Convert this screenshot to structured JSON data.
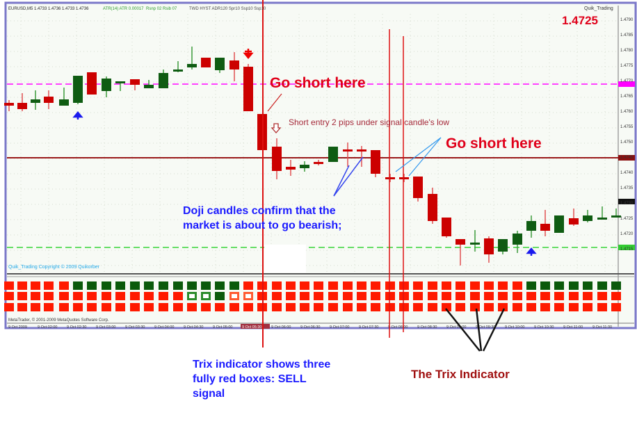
{
  "header": {
    "symbol_info": "EURUSD,M5 1.4733 1.4736 1.4733 1.4736",
    "indicator_info": "ATR(14) ATR 0.00017",
    "indicator_info2": "Rsnp 02 Rsib 07",
    "extra_info": "TWD HYST ADR120 Spr10 Ssp10 Ssp10"
  },
  "top_right": {
    "label": "Quik_Trading",
    "price": "1.4725"
  },
  "price_axis": [
    "1.4790",
    "1.4785",
    "1.4780",
    "1.4775",
    "1.4770",
    "1.4765",
    "1.4760",
    "1.4755",
    "1.4750",
    "1.4745",
    "1.4740",
    "1.4735",
    "1.4730",
    "1.4725",
    "1.4720",
    "1.4715"
  ],
  "price_markers": {
    "magenta": "1.4765",
    "darkred": "1.4745",
    "black": "1.4734",
    "green": "1.4722"
  },
  "copyright_main": "Quik_Trading   Copyright © 2009  Quikorber",
  "copyright_indicator": "MetaTrader, © 2001-2009 MetaQuotes Software Corp.",
  "time_axis": [
    "9 Oct 2009",
    "9 Oct 02:00",
    "9 Oct 02:30",
    "9 Oct 03:00",
    "9 Oct 03:30",
    "9 Oct 04:00",
    "9 Oct 04:30",
    "9 Oct 05:00",
    "9 Oct 05:30",
    "9 Oct 06:00",
    "9 Oct 06:30",
    "9 Oct 07:00",
    "9 Oct 07:30",
    "9 Oct 08:00",
    "9 Oct 08:30",
    "9 Oct 09:00",
    "9 Oct 09:30",
    "9 Oct 10:00",
    "9 Oct 10:30",
    "9 Oct 11:00",
    "9 Oct 11:30"
  ],
  "annotations": {
    "go_short_1": "Go short here",
    "short_entry": "Short entry 2 pips under signal candle's low",
    "go_short_2": "Go short here",
    "doji_line1": "Doji candles confirm that the",
    "doji_line2": "market is about to go bearish;",
    "trix_line1": "Trix indicator shows three",
    "trix_line2": "fully red boxes: SELL",
    "trix_line3": "signal",
    "trix_label": "The Trix Indicator"
  },
  "colors": {
    "bull": "#0f5c12",
    "bear": "#cc0000",
    "trix_red": "#ff1a00",
    "trix_green": "#0b5a0b",
    "annotation_red": "#e0001a",
    "annotation_blue": "#1a1aff",
    "frame": "#7b78c9"
  },
  "trix_columns": [
    "RRR",
    "RRR",
    "RRR",
    "RRR",
    "RRR",
    "GRR",
    "GRR",
    "GRR",
    "GRR",
    "GRR",
    "GRR",
    "GRR",
    "GRR",
    "GgR",
    "GgR",
    "GGR",
    "GrR",
    "RrR",
    "RRR",
    "RRR",
    "RRR",
    "RRR",
    "RRR",
    "RRR",
    "RRR",
    "RRR",
    "RRR",
    "RRR",
    "RRR",
    "RRR",
    "RRR",
    "RRR",
    "RRR",
    "RRR",
    "RRR",
    "RRR",
    "RRR",
    "GRR",
    "GRR",
    "GRR",
    "GRR",
    "GRR",
    "GRR",
    "GRR"
  ]
}
